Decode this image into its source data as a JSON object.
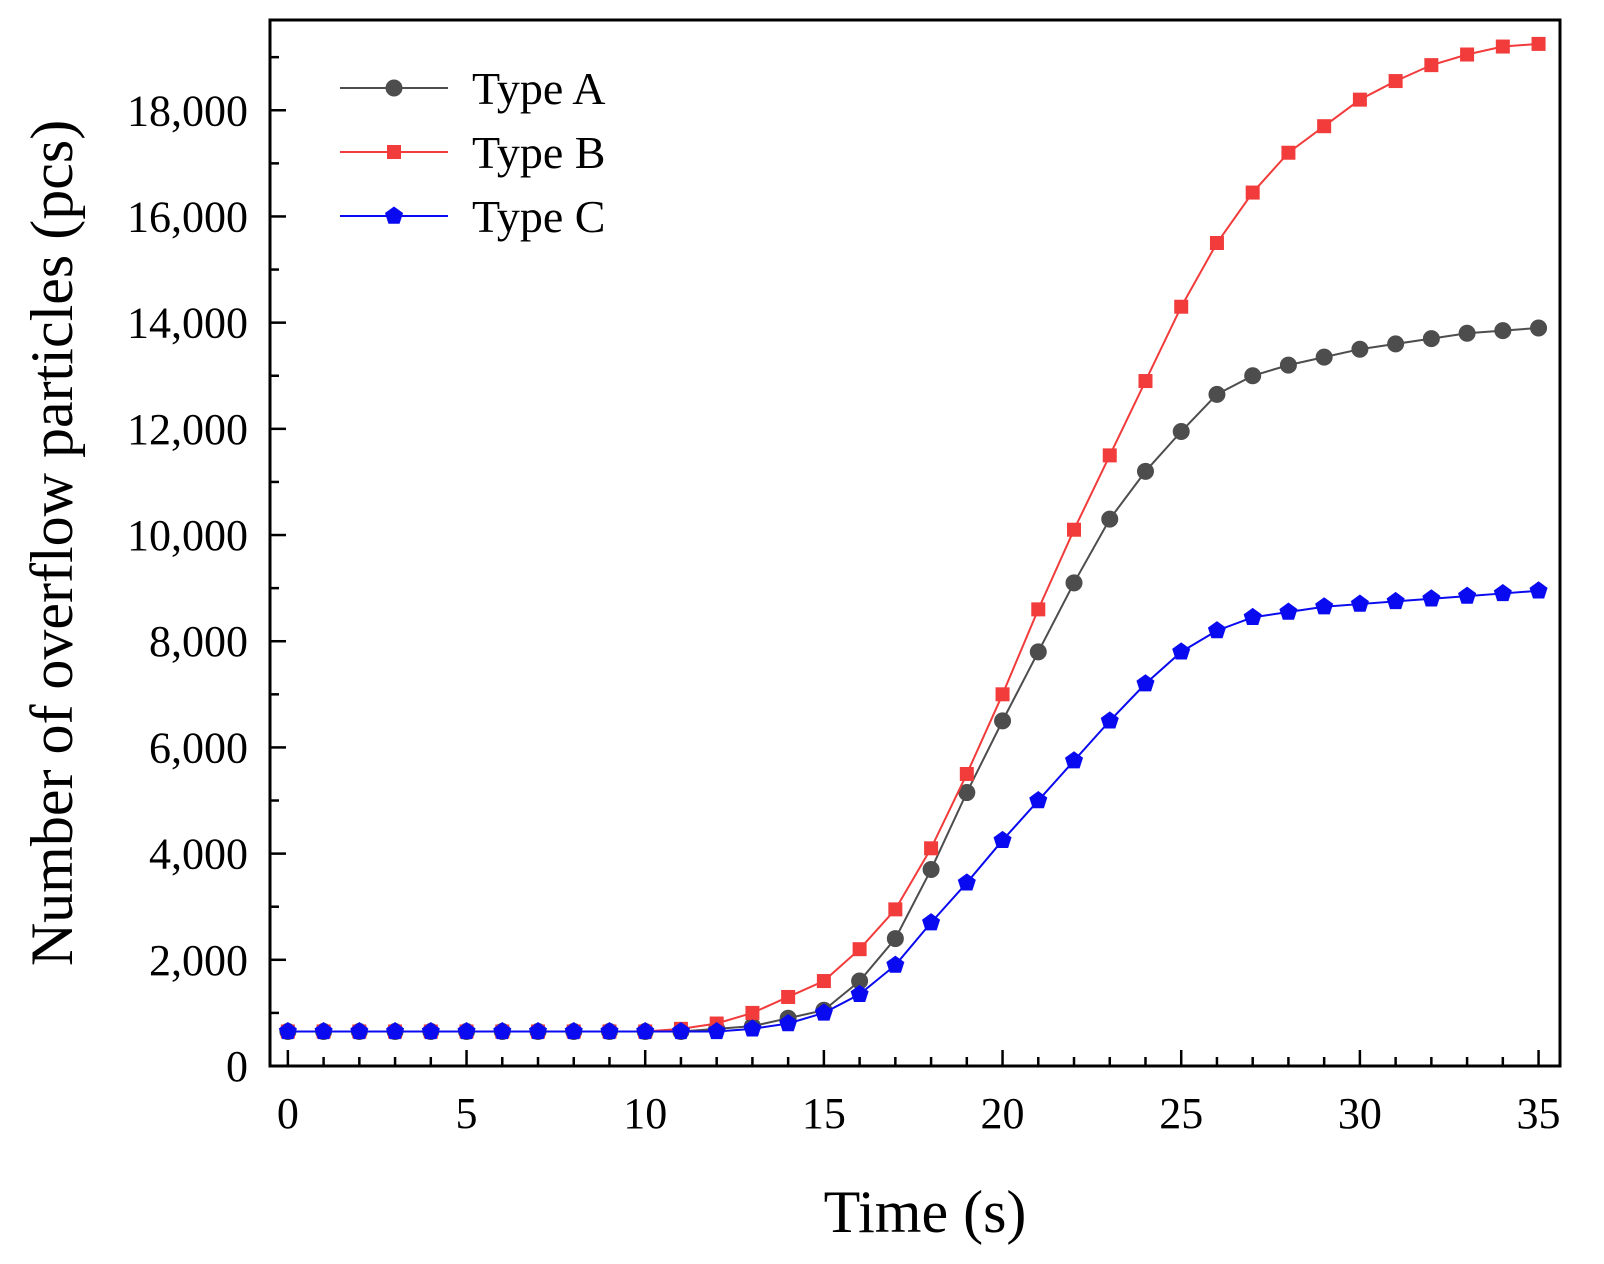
{
  "chart_data": {
    "type": "line",
    "title": "",
    "xlabel": "Time  (s)",
    "ylabel": "Number of overflow particles  (pcs)",
    "xlim": [
      -0.5,
      35.6
    ],
    "ylim": [
      0,
      19700
    ],
    "x_ticks": [
      0,
      5,
      10,
      15,
      20,
      25,
      30,
      35
    ],
    "x_tick_labels": [
      "0",
      "5",
      "10",
      "15",
      "20",
      "25",
      "30",
      "35"
    ],
    "y_ticks": [
      0,
      2000,
      4000,
      6000,
      8000,
      10000,
      12000,
      14000,
      16000,
      18000
    ],
    "y_tick_labels": [
      "0",
      "2,000",
      "4,000",
      "6,000",
      "8,000",
      "10,000",
      "12,000",
      "14,000",
      "16,000",
      "18,000"
    ],
    "legend_position": "top-left",
    "x": [
      0,
      1,
      2,
      3,
      4,
      5,
      6,
      7,
      8,
      9,
      10,
      11,
      12,
      13,
      14,
      15,
      16,
      17,
      18,
      19,
      20,
      21,
      22,
      23,
      24,
      25,
      26,
      27,
      28,
      29,
      30,
      31,
      32,
      33,
      34,
      35
    ],
    "series": [
      {
        "name": "Type A",
        "color": "#4d4d4d",
        "marker": "circle",
        "values": [
          650,
          650,
          650,
          650,
          650,
          650,
          650,
          650,
          650,
          650,
          650,
          650,
          700,
          750,
          900,
          1050,
          1600,
          2400,
          3700,
          5150,
          6500,
          7800,
          9100,
          10300,
          11200,
          11950,
          12650,
          13000,
          13200,
          13350,
          13500,
          13600,
          13700,
          13800,
          13850,
          13900
        ]
      },
      {
        "name": "Type B",
        "color": "#f23b3b",
        "marker": "square",
        "values": [
          650,
          650,
          650,
          650,
          650,
          650,
          650,
          650,
          650,
          650,
          650,
          700,
          800,
          1000,
          1300,
          1600,
          2200,
          2950,
          4100,
          5500,
          7000,
          8600,
          10100,
          11500,
          12900,
          14300,
          15500,
          16450,
          17200,
          17700,
          18200,
          18550,
          18850,
          19050,
          19200,
          19250
        ]
      },
      {
        "name": "Type C",
        "color": "#0a0af0",
        "marker": "pentagon",
        "values": [
          650,
          650,
          650,
          650,
          650,
          650,
          650,
          650,
          650,
          650,
          650,
          650,
          650,
          700,
          800,
          1000,
          1350,
          1900,
          2700,
          3450,
          4250,
          5000,
          5750,
          6500,
          7200,
          7800,
          8200,
          8450,
          8550,
          8650,
          8700,
          8750,
          8800,
          8850,
          8900,
          8950
        ]
      }
    ]
  }
}
